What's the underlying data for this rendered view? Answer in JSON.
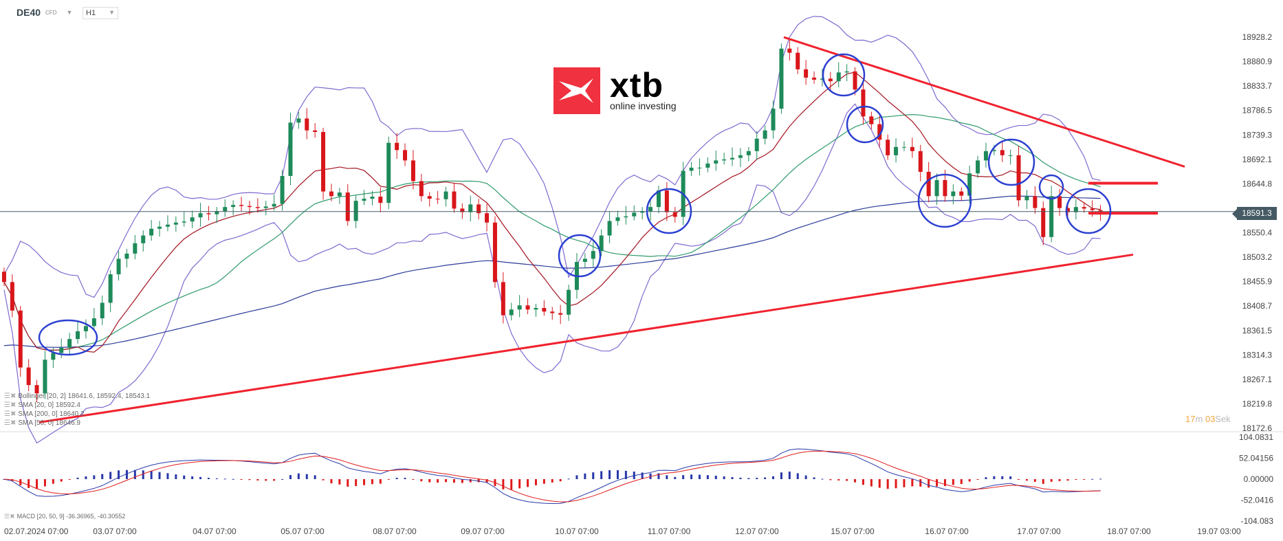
{
  "header": {
    "symbol": "DE40",
    "instrument_type": "CFD",
    "timeframe": "H1"
  },
  "logo": {
    "brand": "xtb",
    "tagline": "online investing"
  },
  "legend": [
    {
      "text": "Bollinger  [20,  2] 18641.6,  18592.4,  18543.1"
    },
    {
      "text": "SMA  [20,  0] 18592.4"
    },
    {
      "text": "SMA  [200,  0] 18640.2"
    },
    {
      "text": "SMA  [50,  0] 18646.9"
    }
  ],
  "macd_legend": "MACD  [20,  50,  9] -36.36965,  -40.30552",
  "current_price": "18591.3",
  "timer": {
    "minutes": "17",
    "min_unit": "m",
    "seconds": "03",
    "sec_unit": "Sek"
  },
  "colors": {
    "bull": "#1e8a5a",
    "bear": "#d8161b",
    "sma20": "#a3121e",
    "sma50": "#2e9a6a",
    "sma200": "#2b3a9a",
    "bollinger": "#8068d0",
    "trendline": "#f0222e",
    "annotation": "#2b3fd0",
    "macd_pos": "#2838a8",
    "macd_neg": "#e01a1a"
  },
  "chart_data": {
    "type": "candlestick",
    "price_axis": {
      "ticks": [
        "18928.2",
        "18880.9",
        "18833.7",
        "18786.5",
        "18739.3",
        "18692.1",
        "18644.8",
        "18550.4",
        "18503.2",
        "18455.9",
        "18408.7",
        "18361.5",
        "18314.3",
        "18267.1",
        "18219.8",
        "18172.6"
      ],
      "range": [
        18172.6,
        18928.2
      ]
    },
    "macd_axis": {
      "ticks": [
        "104.0831",
        "52.04156",
        "0.00000",
        "-52.0416",
        "-104.083"
      ],
      "range": [
        -104.083,
        104.0831
      ]
    },
    "x_ticks": [
      "02.07.2024  07:00",
      "03.07  07:00",
      "04.07  07:00",
      "05.07  07:00",
      "08.07  07:00",
      "09.07  07:00",
      "10.07  07:00",
      "11.07  07:00",
      "12.07  07:00",
      "15.07  07:00",
      "16.07  07:00",
      "17.07  07:00",
      "18.07  07:00",
      "19.07  03:00"
    ],
    "closes": [
      18455,
      18400,
      18290,
      18256,
      18240,
      18305,
      18318,
      18328,
      18345,
      18360,
      18370,
      18385,
      18415,
      18470,
      18500,
      18510,
      18530,
      18545,
      18558,
      18562,
      18566,
      18570,
      18572,
      18580,
      18588,
      18586,
      18592,
      18600,
      18604,
      18602,
      18600,
      18598,
      18601,
      18606,
      18660,
      18763,
      18771,
      18748,
      18745,
      18630,
      18621,
      18628,
      18573,
      18612,
      18616,
      18620,
      18608,
      18724,
      18710,
      18690,
      18650,
      18621,
      18616,
      18615,
      18630,
      18597,
      18590,
      18605,
      18588,
      18570,
      18455,
      18391,
      18402,
      18410,
      18402,
      18405,
      18398,
      18395,
      18392,
      18440,
      18494,
      18500,
      18515,
      18545,
      18573,
      18580,
      18582,
      18589,
      18592,
      18600,
      18632,
      18590,
      18581,
      18670,
      18676,
      18676,
      18684,
      18690,
      18692,
      18695,
      18700,
      18708,
      18732,
      18748,
      18790,
      18906,
      18898,
      18866,
      18850,
      18846,
      18848,
      18843,
      18860,
      18862,
      18827,
      18775,
      18760,
      18730,
      18700,
      18716,
      18716,
      18708,
      18668,
      18621,
      18652,
      18621,
      18630,
      18622,
      18665,
      18690,
      18708,
      18710,
      18700,
      18700,
      18613,
      18621,
      18598,
      18542,
      18621,
      18598,
      18590,
      18600,
      18597,
      18594,
      18591.3
    ],
    "trendlines": [
      {
        "kind": "resistance",
        "from_price": 18928,
        "to_price": 18678
      },
      {
        "kind": "support",
        "from_price": 18184,
        "to_price": 18508
      }
    ],
    "levels": [
      18646,
      18588
    ]
  }
}
